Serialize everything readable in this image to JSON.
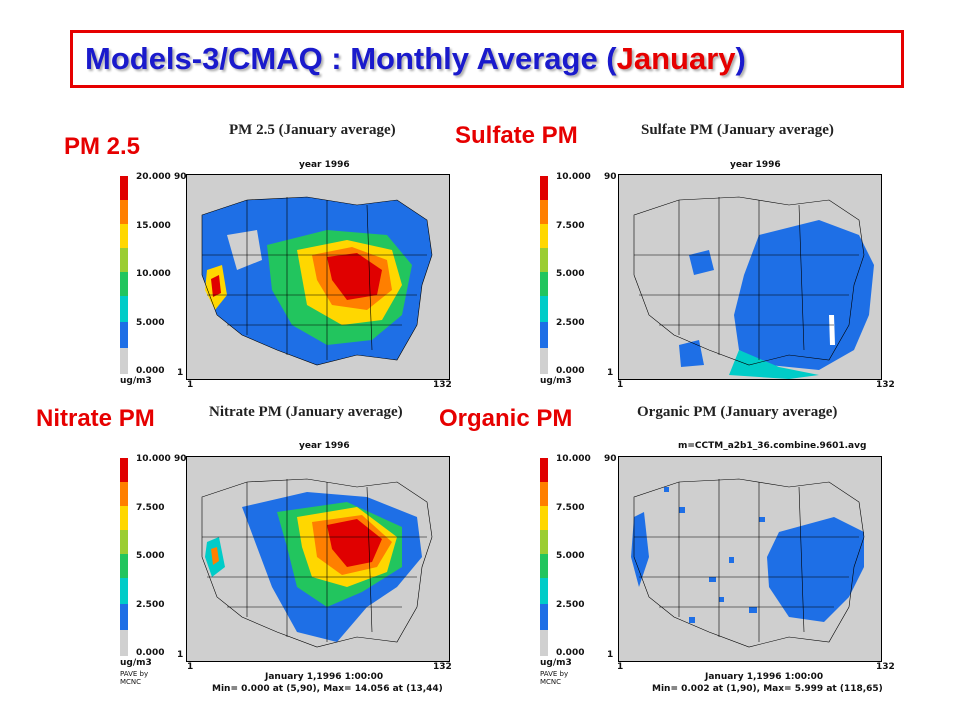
{
  "title": {
    "prefix": "Models-3/CMAQ :  Monthly Average (",
    "highlight": "January",
    "suffix": ")"
  },
  "panels": [
    {
      "id": "pm25",
      "label": "PM 2.5",
      "plot_title": "PM 2.5  (January average)",
      "subtitle": "year 1996",
      "colorbar_ticks": [
        "20.000",
        "15.000",
        "10.000",
        "5.000",
        "0.000"
      ],
      "unit": "ug/m3",
      "y_top": "90",
      "y_bottom": "1",
      "x_left": "1",
      "x_right": "132",
      "footer1": "",
      "footer2": "",
      "pave": ""
    },
    {
      "id": "sulfate",
      "label": "Sulfate PM",
      "plot_title": "Sulfate PM  (January average)",
      "subtitle": "year 1996",
      "colorbar_ticks": [
        "10.000",
        "7.500",
        "5.000",
        "2.500",
        "0.000"
      ],
      "unit": "ug/m3",
      "y_top": "90",
      "y_bottom": "1",
      "x_left": "1",
      "x_right": "132",
      "footer1": "",
      "footer2": "",
      "pave": ""
    },
    {
      "id": "nitrate",
      "label": "Nitrate PM",
      "plot_title": "Nitrate PM  (January average)",
      "subtitle": "year 1996",
      "colorbar_ticks": [
        "10.000",
        "7.500",
        "5.000",
        "2.500",
        "0.000"
      ],
      "unit": "ug/m3",
      "y_top": "90",
      "y_bottom": "1",
      "x_left": "1",
      "x_right": "132",
      "footer1": "January 1,1996 1:00:00",
      "footer2": "Min=  0.000 at (5,90), Max=  14.056 at (13,44)",
      "pave": "PAVE by MCNC"
    },
    {
      "id": "organic",
      "label": "Organic PM",
      "plot_title": "Organic PM  (January average)",
      "subtitle": "m=CCTM_a2b1_36.combine.9601.avg",
      "colorbar_ticks": [
        "10.000",
        "7.500",
        "5.000",
        "2.500",
        "0.000"
      ],
      "unit": "ug/m3",
      "y_top": "90",
      "y_bottom": "1",
      "x_left": "1",
      "x_right": "132",
      "footer1": "January 1,1996 1:00:00",
      "footer2": "Min=  0.002 at (1,90), Max=  5.999 at (118,65)",
      "pave": "PAVE by MCNC"
    }
  ],
  "colors": {
    "title_text": "#1a1acc",
    "accent_red": "#e60000",
    "colorbar": [
      "#e00000",
      "#ff7f00",
      "#ffd700",
      "#9acd32",
      "#22c55e",
      "#00ccc8",
      "#1e6fe6",
      "#d0d0d0"
    ],
    "land_gray": "#cfcfcf"
  }
}
